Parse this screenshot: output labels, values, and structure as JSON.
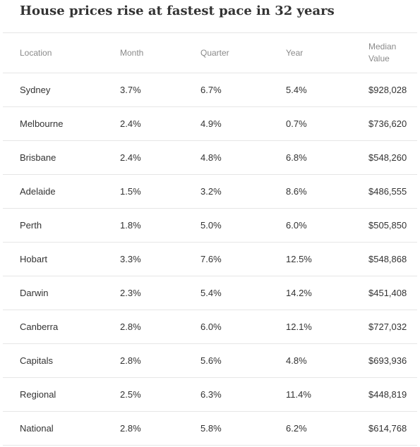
{
  "title": "House prices rise at fastest pace in 32 years",
  "chart_data": {
    "type": "table",
    "title": "House prices rise at fastest pace in 32 years",
    "columns": [
      "Location",
      "Month",
      "Quarter",
      "Year",
      "Median Value"
    ],
    "rows": [
      [
        "Sydney",
        "3.7%",
        "6.7%",
        "5.4%",
        "$928,028"
      ],
      [
        "Melbourne",
        "2.4%",
        "4.9%",
        "0.7%",
        "$736,620"
      ],
      [
        "Brisbane",
        "2.4%",
        "4.8%",
        "6.8%",
        "$548,260"
      ],
      [
        "Adelaide",
        "1.5%",
        "3.2%",
        "8.6%",
        "$486,555"
      ],
      [
        "Perth",
        "1.8%",
        "5.0%",
        "6.0%",
        "$505,850"
      ],
      [
        "Hobart",
        "3.3%",
        "7.6%",
        "12.5%",
        "$548,868"
      ],
      [
        "Darwin",
        "2.3%",
        "5.4%",
        "14.2%",
        "$451,408"
      ],
      [
        "Canberra",
        "2.8%",
        "6.0%",
        "12.1%",
        "$727,032"
      ],
      [
        "Capitals",
        "2.8%",
        "5.6%",
        "4.8%",
        "$693,936"
      ],
      [
        "Regional",
        "2.5%",
        "6.3%",
        "11.4%",
        "$448,819"
      ],
      [
        "National",
        "2.8%",
        "5.8%",
        "6.2%",
        "$614,768"
      ]
    ]
  }
}
